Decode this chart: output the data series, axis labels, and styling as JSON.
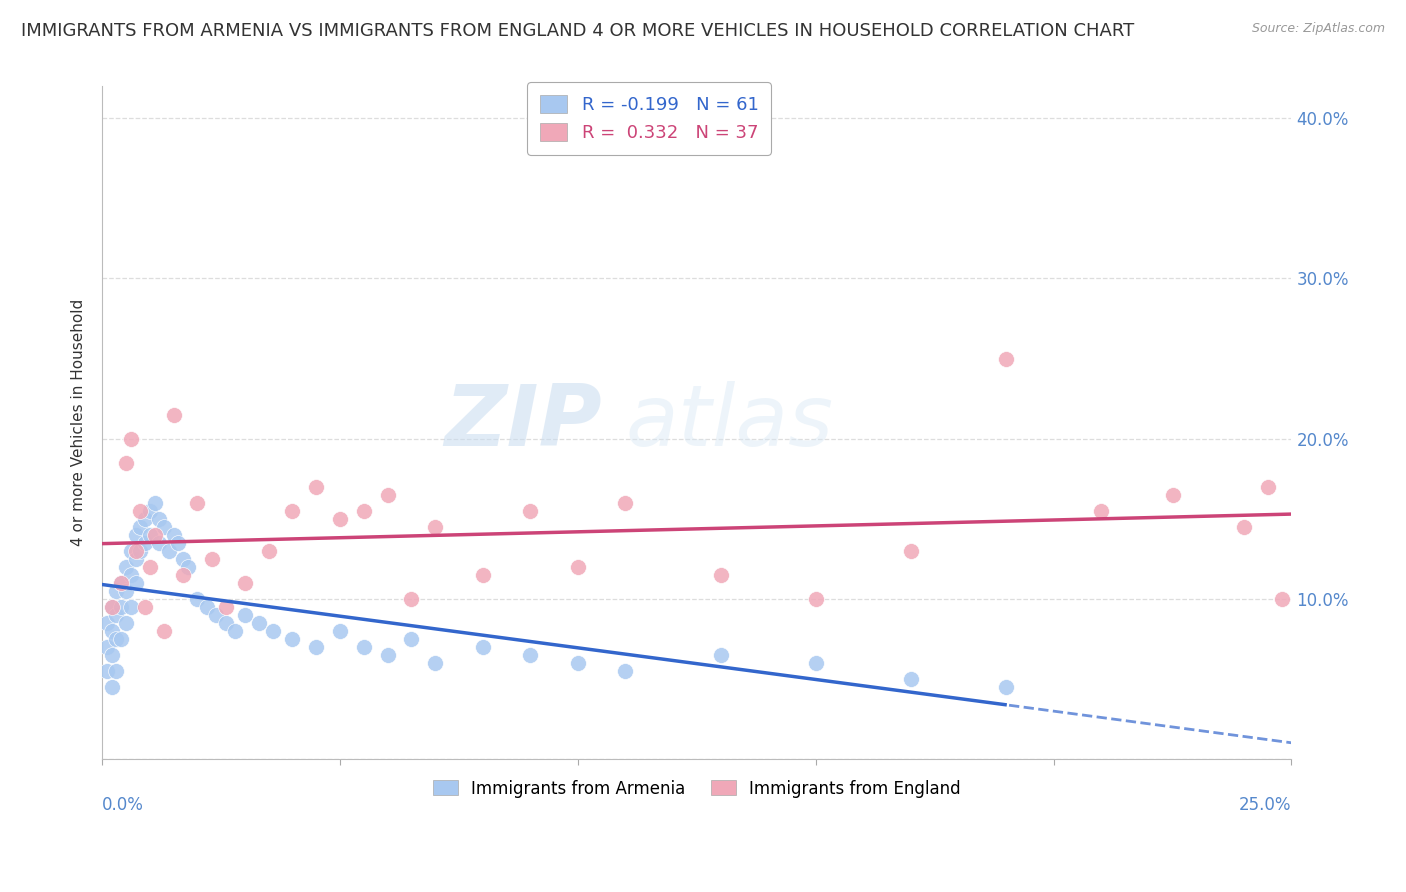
{
  "title": "IMMIGRANTS FROM ARMENIA VS IMMIGRANTS FROM ENGLAND 4 OR MORE VEHICLES IN HOUSEHOLD CORRELATION CHART",
  "source": "Source: ZipAtlas.com",
  "ylabel": "4 or more Vehicles in Household",
  "armenia_R": -0.199,
  "armenia_N": 61,
  "england_R": 0.332,
  "england_N": 37,
  "armenia_color": "#a8c8f0",
  "england_color": "#f0a8b8",
  "armenia_line_color": "#3366cc",
  "england_line_color": "#cc4477",
  "watermark_color": "#ddeeff",
  "xlim": [
    0.0,
    0.25
  ],
  "ylim": [
    0.0,
    0.42
  ],
  "yticks": [
    0.0,
    0.1,
    0.2,
    0.3,
    0.4
  ],
  "yticklabels_right": [
    "",
    "10.0%",
    "20.0%",
    "30.0%",
    "40.0%"
  ],
  "background_color": "#ffffff",
  "grid_color": "#dddddd",
  "title_fontsize": 13,
  "axis_label_fontsize": 11,
  "tick_fontsize": 12,
  "armenia_x": [
    0.001,
    0.001,
    0.001,
    0.002,
    0.002,
    0.002,
    0.002,
    0.003,
    0.003,
    0.003,
    0.003,
    0.004,
    0.004,
    0.004,
    0.005,
    0.005,
    0.005,
    0.006,
    0.006,
    0.006,
    0.007,
    0.007,
    0.007,
    0.008,
    0.008,
    0.009,
    0.009,
    0.01,
    0.01,
    0.011,
    0.012,
    0.012,
    0.013,
    0.014,
    0.015,
    0.016,
    0.017,
    0.018,
    0.02,
    0.022,
    0.024,
    0.026,
    0.028,
    0.03,
    0.033,
    0.036,
    0.04,
    0.045,
    0.05,
    0.055,
    0.06,
    0.065,
    0.07,
    0.08,
    0.09,
    0.1,
    0.11,
    0.13,
    0.15,
    0.17,
    0.19
  ],
  "armenia_y": [
    0.085,
    0.07,
    0.055,
    0.095,
    0.08,
    0.065,
    0.045,
    0.105,
    0.09,
    0.075,
    0.055,
    0.11,
    0.095,
    0.075,
    0.12,
    0.105,
    0.085,
    0.13,
    0.115,
    0.095,
    0.14,
    0.125,
    0.11,
    0.145,
    0.13,
    0.15,
    0.135,
    0.155,
    0.14,
    0.16,
    0.15,
    0.135,
    0.145,
    0.13,
    0.14,
    0.135,
    0.125,
    0.12,
    0.1,
    0.095,
    0.09,
    0.085,
    0.08,
    0.09,
    0.085,
    0.08,
    0.075,
    0.07,
    0.08,
    0.07,
    0.065,
    0.075,
    0.06,
    0.07,
    0.065,
    0.06,
    0.055,
    0.065,
    0.06,
    0.05,
    0.045
  ],
  "england_x": [
    0.002,
    0.004,
    0.005,
    0.006,
    0.007,
    0.008,
    0.009,
    0.01,
    0.011,
    0.013,
    0.015,
    0.017,
    0.02,
    0.023,
    0.026,
    0.03,
    0.035,
    0.04,
    0.045,
    0.05,
    0.055,
    0.06,
    0.065,
    0.07,
    0.08,
    0.09,
    0.1,
    0.11,
    0.13,
    0.15,
    0.17,
    0.19,
    0.21,
    0.225,
    0.24,
    0.245,
    0.248
  ],
  "england_y": [
    0.095,
    0.11,
    0.185,
    0.2,
    0.13,
    0.155,
    0.095,
    0.12,
    0.14,
    0.08,
    0.215,
    0.115,
    0.16,
    0.125,
    0.095,
    0.11,
    0.13,
    0.155,
    0.17,
    0.15,
    0.155,
    0.165,
    0.1,
    0.145,
    0.115,
    0.155,
    0.12,
    0.16,
    0.115,
    0.1,
    0.13,
    0.25,
    0.155,
    0.165,
    0.145,
    0.17,
    0.1
  ]
}
